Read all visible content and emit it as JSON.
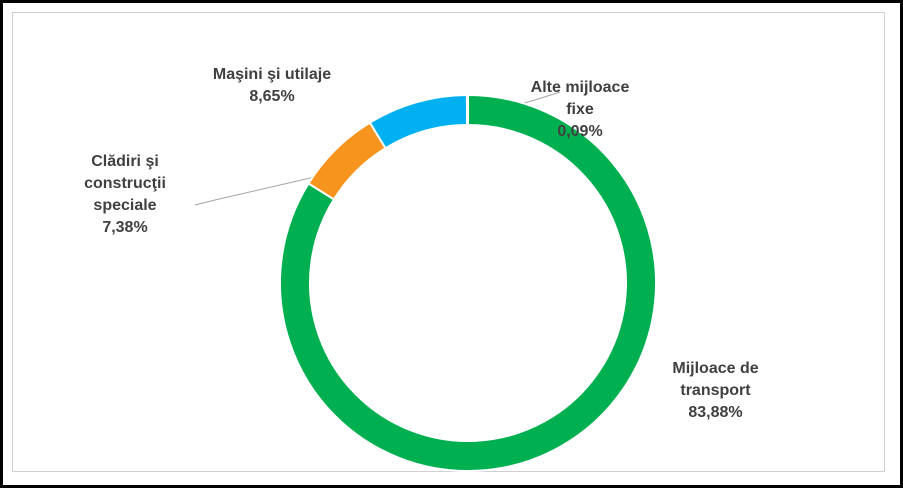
{
  "chart_data": {
    "type": "pie",
    "categories": [
      "Mijloace de transport",
      "Clădiri şi construcţii speciale",
      "Maşini şi utilaje",
      "Alte mijloace fixe"
    ],
    "values": [
      83.88,
      7.38,
      8.65,
      0.09
    ],
    "value_labels": [
      "83,88%",
      "7,38%",
      "8,65%",
      "0,09%"
    ],
    "colors": [
      "#00b050",
      "#f7941d",
      "#00b0f0",
      "#a5a5a5"
    ]
  }
}
